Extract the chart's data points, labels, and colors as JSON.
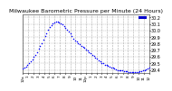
{
  "title": "Milwaukee Barometric Pressure per Minute (24 Hours)",
  "title_fontsize": 4.5,
  "background_color": "#ffffff",
  "plot_bg_color": "#ffffff",
  "dot_color": "#0000ff",
  "dot_size": 1.2,
  "legend_color": "#0000cc",
  "y_label_fontsize": 3.5,
  "x_label_fontsize": 3.0,
  "ylim": [
    29.35,
    30.25
  ],
  "yticks": [
    29.4,
    29.5,
    29.6,
    29.7,
    29.8,
    29.9,
    30.0,
    30.1,
    30.2
  ],
  "ytick_labels": [
    "29.4",
    "29.5",
    "29.6",
    "29.7",
    "29.8",
    "29.9",
    "30.0",
    "30.1",
    "30.2"
  ],
  "xlim": [
    0,
    1440
  ],
  "xticks": [
    0,
    60,
    120,
    180,
    240,
    300,
    360,
    420,
    480,
    540,
    600,
    660,
    720,
    780,
    840,
    900,
    960,
    1020,
    1080,
    1140,
    1200,
    1260,
    1320,
    1380,
    1440
  ],
  "xtick_labels": [
    "12a",
    "1",
    "2",
    "3",
    "4",
    "5",
    "6",
    "7",
    "8",
    "9",
    "10",
    "11",
    "12p",
    "1",
    "2",
    "3",
    "4",
    "5",
    "6",
    "7",
    "8",
    "9",
    "10",
    "11",
    "12"
  ],
  "grid_color": "#aaaaaa",
  "grid_style": "--",
  "data_x": [
    0,
    18,
    36,
    54,
    72,
    90,
    108,
    126,
    144,
    162,
    180,
    198,
    216,
    234,
    252,
    270,
    288,
    306,
    324,
    342,
    360,
    378,
    396,
    414,
    432,
    450,
    468,
    486,
    504,
    522,
    540,
    558,
    576,
    594,
    612,
    630,
    648,
    666,
    684,
    702,
    720,
    738,
    756,
    774,
    792,
    810,
    828,
    846,
    864,
    882,
    900,
    918,
    936,
    954,
    972,
    990,
    1008,
    1026,
    1044,
    1062,
    1080,
    1098,
    1116,
    1134,
    1152,
    1170,
    1188,
    1206,
    1224,
    1242,
    1260,
    1278,
    1296,
    1314,
    1332,
    1350,
    1368,
    1386,
    1404,
    1422,
    1440
  ],
  "data_y": [
    29.42,
    29.43,
    29.45,
    29.47,
    29.5,
    29.53,
    29.56,
    29.6,
    29.63,
    29.67,
    29.72,
    29.76,
    29.81,
    29.86,
    29.91,
    29.96,
    30.01,
    30.05,
    30.08,
    30.11,
    30.12,
    30.13,
    30.13,
    30.12,
    30.11,
    30.09,
    30.07,
    30.04,
    30.01,
    29.98,
    29.95,
    29.91,
    29.88,
    29.85,
    29.83,
    29.81,
    29.79,
    29.77,
    29.75,
    29.73,
    29.71,
    29.69,
    29.67,
    29.65,
    29.63,
    29.61,
    29.59,
    29.57,
    29.55,
    29.53,
    29.51,
    29.5,
    29.48,
    29.47,
    29.46,
    29.45,
    29.44,
    29.43,
    29.42,
    29.41,
    29.4,
    29.4,
    29.39,
    29.39,
    29.38,
    29.38,
    29.38,
    29.37,
    29.37,
    29.37,
    29.37,
    29.37,
    29.37,
    29.37,
    29.38,
    29.38,
    29.39,
    29.4,
    29.41,
    29.42,
    29.43
  ]
}
